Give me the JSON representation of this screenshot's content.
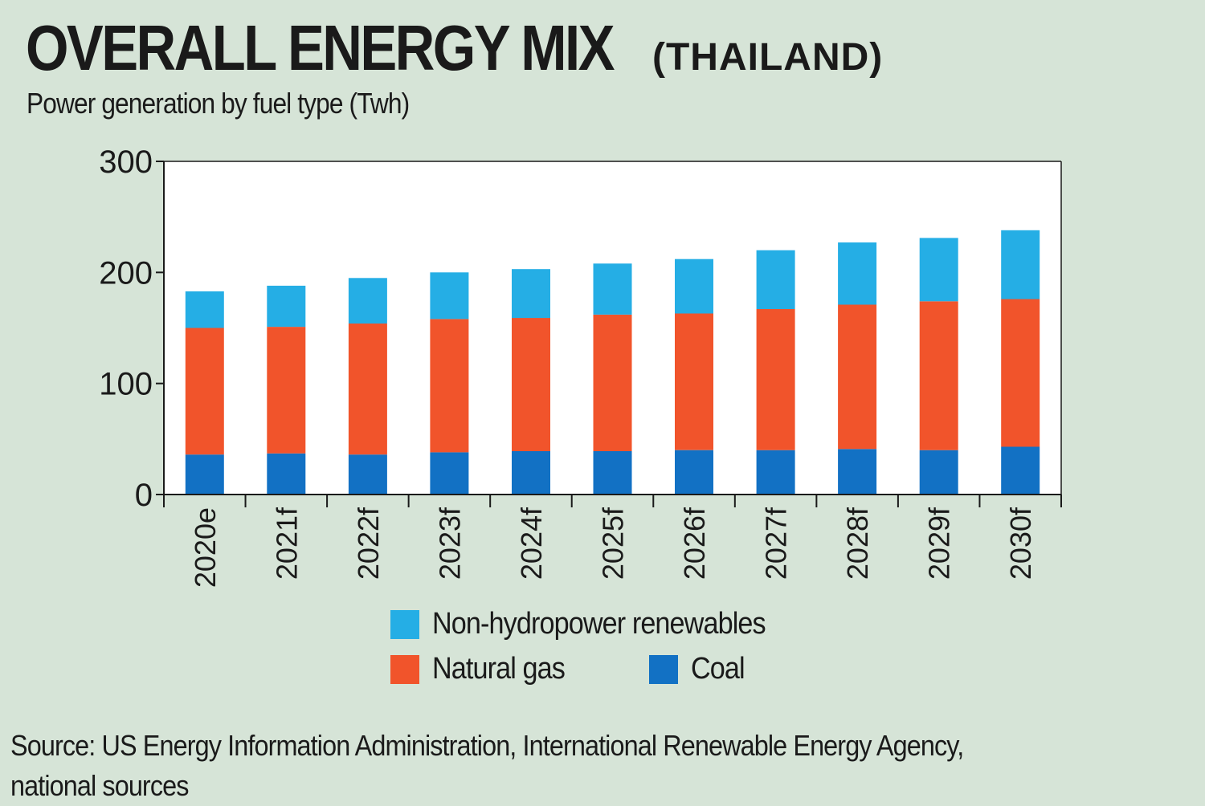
{
  "title": "OVERALL ENERGY MIX",
  "title_suffix": "(THAILAND)",
  "subtitle": "Power generation by fuel type (Twh)",
  "source": "Source: US Energy Information Administration, International Renewable Energy Agency, national sources",
  "colors": {
    "background": "#d6e4d7",
    "plot_bg": "#ffffff",
    "coal": "#1271c4",
    "natural_gas": "#f1542b",
    "renewables": "#25aee5"
  },
  "chart_data": {
    "type": "bar",
    "stacked": true,
    "title": "OVERALL ENERGY MIX (THAILAND)",
    "subtitle": "Power generation by fuel type (Twh)",
    "xlabel": "",
    "ylabel": "",
    "ylim": [
      0,
      300
    ],
    "yticks": [
      "0",
      "100",
      "200",
      "300"
    ],
    "grid": false,
    "legend_position": "bottom-center",
    "categories": [
      "2020e",
      "2021f",
      "2022f",
      "2023f",
      "2024f",
      "2025f",
      "2026f",
      "2027f",
      "2028f",
      "2029f",
      "2030f"
    ],
    "series": [
      {
        "name": "Coal",
        "color": "#1271c4",
        "values": [
          36,
          37,
          36,
          38,
          39,
          39,
          40,
          40,
          41,
          40,
          43
        ]
      },
      {
        "name": "Natural gas",
        "color": "#f1542b",
        "values": [
          114,
          114,
          118,
          120,
          120,
          123,
          123,
          127,
          130,
          134,
          133
        ]
      },
      {
        "name": "Non-hydropower renewables",
        "color": "#25aee5",
        "values": [
          33,
          37,
          41,
          42,
          44,
          46,
          49,
          53,
          56,
          57,
          62
        ]
      }
    ]
  }
}
